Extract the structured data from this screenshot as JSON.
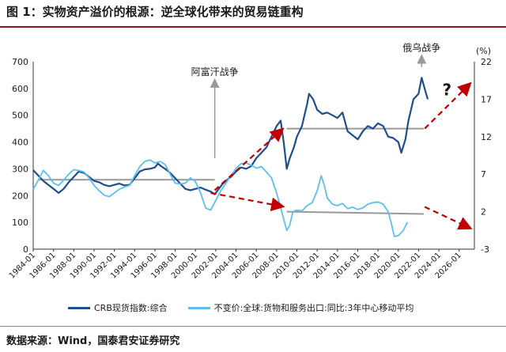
{
  "header": {
    "title": "图 1：实物资产溢价的根源：逆全球化带来的贸易链重构"
  },
  "footer": {
    "source": "数据来源：Wind，国泰君安证券研究"
  },
  "chart_data": {
    "type": "line",
    "left_axis": {
      "min": 0,
      "max": 700,
      "ticks": [
        0,
        100,
        200,
        300,
        400,
        500,
        600,
        700
      ]
    },
    "right_axis": {
      "unit": "(%)",
      "min": -3,
      "max": 22,
      "ticks": [
        -3,
        2,
        7,
        12,
        17,
        22
      ]
    },
    "x_ticks": [
      "1984-01",
      "1986-01",
      "1988-01",
      "1990-01",
      "1992-01",
      "1994-01",
      "1996-01",
      "1998-01",
      "2000-01",
      "2002-01",
      "2004-01",
      "2006-01",
      "2008-01",
      "2010-01",
      "2012-01",
      "2014-01",
      "2016-01",
      "2018-01",
      "2020-01",
      "2022-01",
      "2024-01",
      "2026-01"
    ],
    "x_range": [
      1984,
      2027.5
    ],
    "series": [
      {
        "name": "CRB现货指数:综合",
        "axis": "left",
        "color": "#1f4e8c",
        "points": [
          [
            1984.0,
            295
          ],
          [
            1984.5,
            275
          ],
          [
            1985.0,
            255
          ],
          [
            1985.5,
            240
          ],
          [
            1986.0,
            225
          ],
          [
            1986.5,
            210
          ],
          [
            1987.0,
            225
          ],
          [
            1987.5,
            250
          ],
          [
            1988.0,
            270
          ],
          [
            1988.5,
            290
          ],
          [
            1989.0,
            285
          ],
          [
            1989.5,
            270
          ],
          [
            1990.0,
            255
          ],
          [
            1990.5,
            250
          ],
          [
            1991.0,
            240
          ],
          [
            1991.5,
            235
          ],
          [
            1992.0,
            240
          ],
          [
            1992.5,
            245
          ],
          [
            1993.0,
            238
          ],
          [
            1993.5,
            240
          ],
          [
            1994.0,
            265
          ],
          [
            1994.5,
            290
          ],
          [
            1995.0,
            298
          ],
          [
            1995.5,
            300
          ],
          [
            1996.0,
            305
          ],
          [
            1996.3,
            320
          ],
          [
            1996.6,
            310
          ],
          [
            1997.0,
            300
          ],
          [
            1997.5,
            285
          ],
          [
            1998.0,
            265
          ],
          [
            1998.5,
            245
          ],
          [
            1999.0,
            225
          ],
          [
            1999.5,
            220
          ],
          [
            2000.0,
            225
          ],
          [
            2000.5,
            230
          ],
          [
            2001.0,
            222
          ],
          [
            2001.5,
            215
          ],
          [
            2001.9,
            205
          ],
          [
            2002.3,
            225
          ],
          [
            2002.7,
            245
          ],
          [
            2003.0,
            255
          ],
          [
            2003.5,
            270
          ],
          [
            2004.0,
            290
          ],
          [
            2004.5,
            305
          ],
          [
            2005.0,
            300
          ],
          [
            2005.5,
            310
          ],
          [
            2006.0,
            340
          ],
          [
            2006.5,
            360
          ],
          [
            2007.0,
            380
          ],
          [
            2007.5,
            420
          ],
          [
            2008.0,
            460
          ],
          [
            2008.4,
            480
          ],
          [
            2008.7,
            400
          ],
          [
            2009.0,
            300
          ],
          [
            2009.3,
            340
          ],
          [
            2009.7,
            380
          ],
          [
            2010.0,
            420
          ],
          [
            2010.5,
            460
          ],
          [
            2011.0,
            540
          ],
          [
            2011.2,
            580
          ],
          [
            2011.6,
            560
          ],
          [
            2012.0,
            520
          ],
          [
            2012.5,
            505
          ],
          [
            2013.0,
            510
          ],
          [
            2013.5,
            500
          ],
          [
            2014.0,
            490
          ],
          [
            2014.5,
            510
          ],
          [
            2015.0,
            440
          ],
          [
            2015.5,
            425
          ],
          [
            2016.0,
            410
          ],
          [
            2016.5,
            440
          ],
          [
            2017.0,
            460
          ],
          [
            2017.5,
            450
          ],
          [
            2018.0,
            470
          ],
          [
            2018.5,
            460
          ],
          [
            2019.0,
            420
          ],
          [
            2019.5,
            415
          ],
          [
            2020.0,
            400
          ],
          [
            2020.3,
            360
          ],
          [
            2020.7,
            410
          ],
          [
            2021.0,
            480
          ],
          [
            2021.5,
            560
          ],
          [
            2022.0,
            580
          ],
          [
            2022.3,
            640
          ],
          [
            2022.6,
            600
          ],
          [
            2022.9,
            560
          ]
        ]
      },
      {
        "name": "不变价:全球:货物和服务出口:同比:3年中心移动平均",
        "axis": "right",
        "color": "#5bc0eb",
        "points": [
          [
            1984.0,
            5.0
          ],
          [
            1984.5,
            6.2
          ],
          [
            1985.0,
            7.5
          ],
          [
            1985.5,
            6.8
          ],
          [
            1986.0,
            5.8
          ],
          [
            1986.5,
            5.5
          ],
          [
            1987.0,
            6.2
          ],
          [
            1987.5,
            7.0
          ],
          [
            1988.0,
            7.6
          ],
          [
            1988.5,
            7.5
          ],
          [
            1989.0,
            7.3
          ],
          [
            1989.5,
            6.5
          ],
          [
            1990.0,
            5.5
          ],
          [
            1990.5,
            4.8
          ],
          [
            1991.0,
            4.2
          ],
          [
            1991.5,
            4.0
          ],
          [
            1992.0,
            4.5
          ],
          [
            1992.5,
            5.0
          ],
          [
            1993.0,
            5.3
          ],
          [
            1993.5,
            5.5
          ],
          [
            1994.0,
            6.8
          ],
          [
            1994.5,
            8.0
          ],
          [
            1995.0,
            8.7
          ],
          [
            1995.5,
            8.9
          ],
          [
            1996.0,
            8.5
          ],
          [
            1996.5,
            8.7
          ],
          [
            1997.0,
            8.3
          ],
          [
            1997.5,
            7.0
          ],
          [
            1998.0,
            5.8
          ],
          [
            1998.5,
            5.7
          ],
          [
            1999.0,
            5.8
          ],
          [
            1999.5,
            6.5
          ],
          [
            2000.0,
            6.0
          ],
          [
            2000.5,
            4.5
          ],
          [
            2001.0,
            2.5
          ],
          [
            2001.5,
            2.2
          ],
          [
            2002.0,
            3.5
          ],
          [
            2002.5,
            4.8
          ],
          [
            2003.0,
            5.8
          ],
          [
            2003.5,
            6.8
          ],
          [
            2004.0,
            7.8
          ],
          [
            2004.5,
            8.4
          ],
          [
            2005.0,
            8.5
          ],
          [
            2005.5,
            8.2
          ],
          [
            2006.0,
            7.8
          ],
          [
            2006.5,
            8.0
          ],
          [
            2007.0,
            7.3
          ],
          [
            2007.5,
            6.5
          ],
          [
            2008.0,
            4.5
          ],
          [
            2008.5,
            2.0
          ],
          [
            2009.0,
            -0.5
          ],
          [
            2009.3,
            0.2
          ],
          [
            2009.6,
            2.0
          ],
          [
            2010.0,
            2.2
          ],
          [
            2010.5,
            2.1
          ],
          [
            2011.0,
            2.8
          ],
          [
            2011.5,
            3.2
          ],
          [
            2012.0,
            4.8
          ],
          [
            2012.4,
            6.8
          ],
          [
            2012.7,
            5.5
          ],
          [
            2013.0,
            3.8
          ],
          [
            2013.5,
            3.0
          ],
          [
            2014.0,
            2.8
          ],
          [
            2014.5,
            3.1
          ],
          [
            2015.0,
            2.4
          ],
          [
            2015.5,
            2.6
          ],
          [
            2016.0,
            2.3
          ],
          [
            2016.5,
            2.5
          ],
          [
            2017.0,
            3.0
          ],
          [
            2017.5,
            3.2
          ],
          [
            2018.0,
            3.3
          ],
          [
            2018.5,
            3.0
          ],
          [
            2019.0,
            2.0
          ],
          [
            2019.3,
            0.5
          ],
          [
            2019.6,
            -1.3
          ],
          [
            2020.0,
            -1.2
          ],
          [
            2020.5,
            -0.5
          ],
          [
            2020.9,
            0.6
          ]
        ]
      }
    ],
    "reference_lines": [
      {
        "axis": "left",
        "from": [
          1984.5,
          259
        ],
        "to": [
          2001.9,
          259
        ],
        "color": "#999999"
      },
      {
        "axis": "left",
        "from": [
          2009.0,
          450
        ],
        "to": [
          2022.5,
          450
        ],
        "color": "#999999"
      },
      {
        "axis": "right",
        "from": [
          2009.0,
          2.0
        ],
        "to": [
          2022.5,
          1.7
        ],
        "color": "#999999"
      }
    ],
    "trend_arrows": [
      {
        "from": [
          2001.9,
          220
        ],
        "to": [
          2008.5,
          445
        ],
        "axis": "left",
        "color": "#c00000"
      },
      {
        "from": [
          2022.6,
          450
        ],
        "to": [
          2027.0,
          615
        ],
        "axis": "left",
        "color": "#c00000"
      },
      {
        "from": [
          2001.5,
          210
        ],
        "to": [
          2008.5,
          160
        ],
        "axis": "left",
        "color": "#c00000"
      },
      {
        "from": [
          2022.6,
          158
        ],
        "to": [
          2027.0,
          80
        ],
        "axis": "left",
        "color": "#c00000"
      }
    ],
    "annotations": [
      {
        "text": "阿富汗战争",
        "at": [
          2001.9,
          650
        ],
        "axis": "left",
        "arrow_to": [
          2001.9,
          340
        ]
      },
      {
        "text": "俄乌战争",
        "at": [
          2022.3,
          740
        ],
        "axis": "left",
        "arrow_to": [
          2022.3,
          680
        ]
      },
      {
        "text": "?",
        "at": [
          2024.8,
          575
        ],
        "axis": "left",
        "color": "#c00000"
      }
    ]
  },
  "legend": {
    "crb_label": "CRB现货指数:综合",
    "export_label": "不变价:全球:货物和服务出口:同比:3年中心移动平均",
    "crb_color": "#1f4e8c",
    "export_color": "#5bc0eb"
  }
}
